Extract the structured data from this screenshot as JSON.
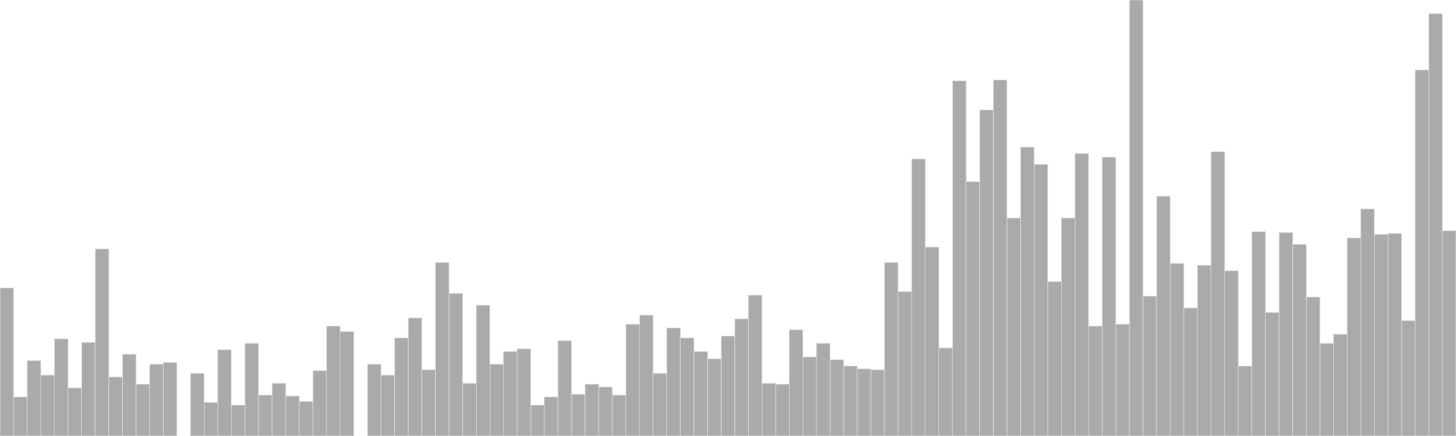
{
  "chart_data": {
    "type": "bar",
    "title": "",
    "xlabel": "",
    "ylabel": "",
    "grid": false,
    "legend": "none",
    "ylim": [
      0,
      480
    ],
    "bar_color": "#aaaaaa",
    "values": [
      163,
      43,
      83,
      67,
      107,
      53,
      103,
      206,
      65,
      90,
      57,
      79,
      81,
      0,
      69,
      37,
      95,
      34,
      102,
      45,
      58,
      44,
      38,
      72,
      121,
      115,
      0,
      79,
      67,
      108,
      130,
      73,
      191,
      157,
      58,
      144,
      79,
      93,
      96,
      34,
      43,
      105,
      46,
      57,
      54,
      45,
      123,
      133,
      69,
      119,
      108,
      93,
      85,
      110,
      129,
      155,
      58,
      57,
      117,
      87,
      102,
      84,
      77,
      74,
      73,
      191,
      159,
      305,
      208,
      97,
      391,
      280,
      359,
      392,
      240,
      318,
      299,
      170,
      240,
      311,
      121,
      307,
      123,
      480,
      154,
      264,
      190,
      141,
      188,
      313,
      182,
      77,
      225,
      136,
      224,
      211,
      153,
      102,
      112,
      218,
      250,
      222,
      223,
      127,
      403,
      465,
      226
    ]
  }
}
